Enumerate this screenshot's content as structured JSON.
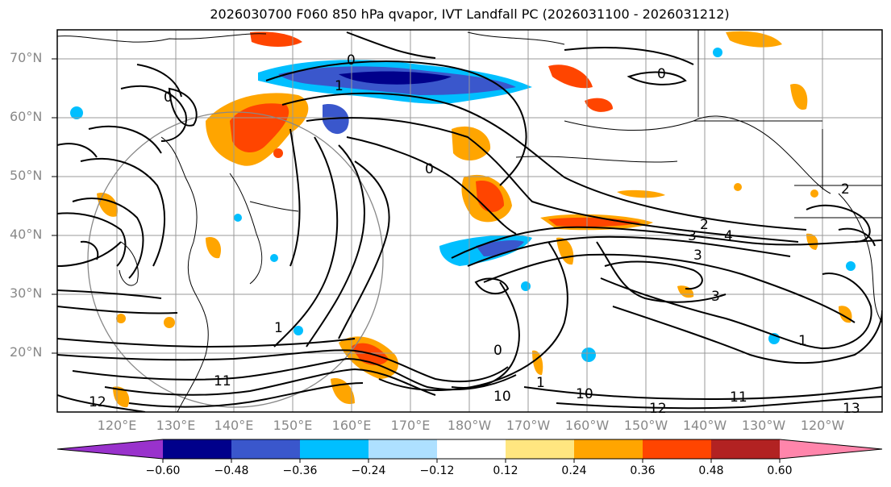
{
  "title": "2026030700 F060 850 hPa qvapor, IVT Landfall PC (2026031100 - 2026031212)",
  "lat_labels": [
    "70°N",
    "60°N",
    "50°N",
    "40°N",
    "30°N",
    "20°N"
  ],
  "lon_labels": [
    "120°E",
    "130°E",
    "140°E",
    "150°E",
    "160°E",
    "170°E",
    "180°W",
    "170°W",
    "160°W",
    "150°W",
    "140°W",
    "130°W",
    "120°W"
  ],
  "colorbar": {
    "colors": [
      "#9932cc",
      "#00008b",
      "#3a57cc",
      "#00bfff",
      "#aee0ff",
      "#ffffff",
      "#ffe680",
      "#ffa500",
      "#ff4500",
      "#b22222",
      "#ff85ab"
    ],
    "tick_labels": [
      "−0.60",
      "−0.48",
      "−0.36",
      "−0.24",
      "−0.12",
      "0.12",
      "0.24",
      "0.36",
      "0.48",
      "0.60"
    ]
  },
  "contour_labels": [
    "0",
    "0",
    "0",
    "0",
    "0",
    "1",
    "1",
    "1",
    "1",
    "2",
    "2",
    "3",
    "3",
    "3",
    "4",
    "10",
    "10",
    "11",
    "11",
    "12",
    "12",
    "13"
  ]
}
